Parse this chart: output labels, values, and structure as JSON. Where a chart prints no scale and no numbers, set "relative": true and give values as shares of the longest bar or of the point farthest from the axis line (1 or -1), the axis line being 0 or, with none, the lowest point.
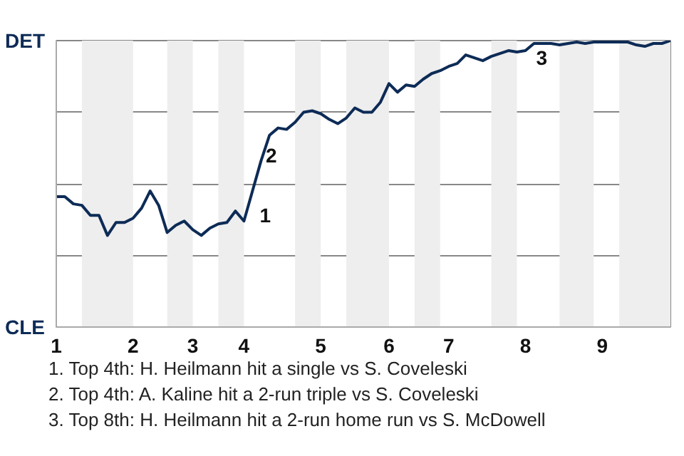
{
  "chart_data": {
    "type": "line",
    "relative": true,
    "categories": [
      "1",
      null,
      null,
      null,
      null,
      null,
      null,
      null,
      null,
      "2",
      null,
      null,
      null,
      null,
      null,
      null,
      "3",
      null,
      null,
      null,
      null,
      null,
      "4",
      null,
      null,
      null,
      null,
      null,
      null,
      null,
      null,
      "5",
      null,
      null,
      null,
      null,
      null,
      null,
      null,
      "6",
      null,
      null,
      null,
      null,
      null,
      null,
      "7",
      null,
      null,
      null,
      null,
      null,
      null,
      null,
      null,
      "8",
      null,
      null,
      null,
      null,
      null,
      null,
      null,
      null,
      "9",
      null,
      null,
      null,
      null,
      null,
      null,
      null,
      null
    ],
    "series": [
      {
        "color": "#0d2b56",
        "values": [
          0.455,
          0.455,
          0.43,
          0.425,
          0.39,
          0.39,
          0.32,
          0.365,
          0.365,
          0.38,
          0.415,
          0.475,
          0.425,
          0.33,
          0.355,
          0.37,
          0.34,
          0.32,
          0.345,
          0.36,
          0.365,
          0.405,
          0.37,
          0.475,
          0.58,
          0.67,
          0.695,
          0.69,
          0.715,
          0.75,
          0.755,
          0.745,
          0.725,
          0.71,
          0.73,
          0.765,
          0.75,
          0.75,
          0.785,
          0.85,
          0.82,
          0.845,
          0.84,
          0.865,
          0.885,
          0.895,
          0.91,
          0.92,
          0.95,
          0.94,
          0.93,
          0.945,
          0.955,
          0.965,
          0.96,
          0.965,
          0.99,
          0.99,
          0.99,
          0.985,
          0.99,
          0.995,
          0.99,
          0.995,
          0.995,
          0.995,
          0.995,
          0.995,
          0.985,
          0.98,
          0.99,
          0.99,
          1
        ]
      }
    ],
    "grid": "y",
    "annotations": [
      "DET",
      "CLE",
      "1",
      "2",
      "3",
      "1. Top 4th: H. Heilmann hit a single vs S. Coveleski",
      "2. Top 4th: A. Kaline hit a 2-run triple vs S. Coveleski",
      "3. Top 8th: H. Heilmann hit a 2-run home run vs S. McDowell"
    ],
    "line_style": "solid"
  }
}
